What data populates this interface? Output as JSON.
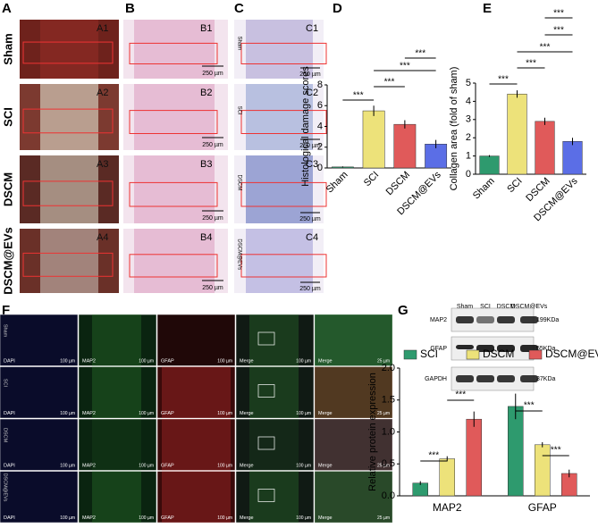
{
  "figure": {
    "panel_letters": [
      "A",
      "B",
      "C",
      "D",
      "E",
      "F",
      "G"
    ],
    "groups": [
      "Sham",
      "SCI",
      "DSCM",
      "DSCM@EVs"
    ],
    "a_labels": [
      "A1",
      "A2",
      "A3",
      "A4"
    ],
    "b_labels": [
      "B1",
      "B2",
      "B3",
      "B4"
    ],
    "c_labels": [
      "C1",
      "C2",
      "C3",
      "C4"
    ],
    "scale_250": "250 µm",
    "scale_100": "100 µm",
    "scale_25": "25 µm",
    "f_columns": [
      "DAPI",
      "MAP2",
      "GFAP",
      "Merge",
      "Merge"
    ],
    "blot": {
      "proteins": [
        "MAP2",
        "GFAP",
        "GAPDH"
      ],
      "sizes": [
        "199KDa",
        "55KDa",
        "37KDa"
      ]
    }
  },
  "chart_data": [
    {
      "type": "bar",
      "ylabel": "Histological damage scores",
      "categories": [
        "Sham",
        "SCI",
        "DSCM",
        "DSCM@EVs"
      ],
      "values": [
        0.1,
        5.5,
        4.2,
        2.3
      ],
      "errors": [
        0.05,
        0.5,
        0.4,
        0.4
      ],
      "colors": [
        "#2e9a6e",
        "#ede27a",
        "#e05a5a",
        "#5b6ee6"
      ],
      "ylim": [
        0,
        8
      ],
      "yticks": [
        0,
        2,
        4,
        6,
        8
      ],
      "annotations": [
        "***",
        "***",
        "***",
        "***"
      ]
    },
    {
      "type": "bar",
      "ylabel": "Collagen area (fold of sham)",
      "categories": [
        "Sham",
        "SCI",
        "DSCM",
        "DSCM@EVs"
      ],
      "values": [
        1.0,
        4.4,
        2.9,
        1.8
      ],
      "errors": [
        0.05,
        0.2,
        0.2,
        0.2
      ],
      "colors": [
        "#2e9a6e",
        "#ede27a",
        "#e05a5a",
        "#5b6ee6"
      ],
      "ylim": [
        0,
        5
      ],
      "yticks": [
        0,
        1,
        2,
        3,
        4,
        5
      ],
      "annotations": [
        "***",
        "***",
        "***",
        "***",
        "***"
      ]
    },
    {
      "type": "grouped-bar",
      "ylabel": "Relative protein expression",
      "categories": [
        "MAP2",
        "GFAP"
      ],
      "series": [
        {
          "name": "SCI",
          "color": "#2e9a6e",
          "values": [
            0.2,
            1.4
          ],
          "errors": [
            0.03,
            0.2
          ]
        },
        {
          "name": "DSCM",
          "color": "#ede27a",
          "values": [
            0.58,
            0.8
          ],
          "errors": [
            0.04,
            0.04
          ]
        },
        {
          "name": "DSCM@EVs",
          "color": "#e05a5a",
          "values": [
            1.2,
            0.35
          ],
          "errors": [
            0.12,
            0.06
          ]
        }
      ],
      "ylim": [
        0,
        2
      ],
      "yticks": [
        {
          "value": 0,
          "label": "0.0"
        },
        0.5,
        {
          "value": 1,
          "label": "1.0"
        },
        1.5,
        {
          "value": 2,
          "label": "2.0"
        }
      ],
      "annotations": [
        "***",
        "***",
        "***",
        "***"
      ]
    }
  ]
}
